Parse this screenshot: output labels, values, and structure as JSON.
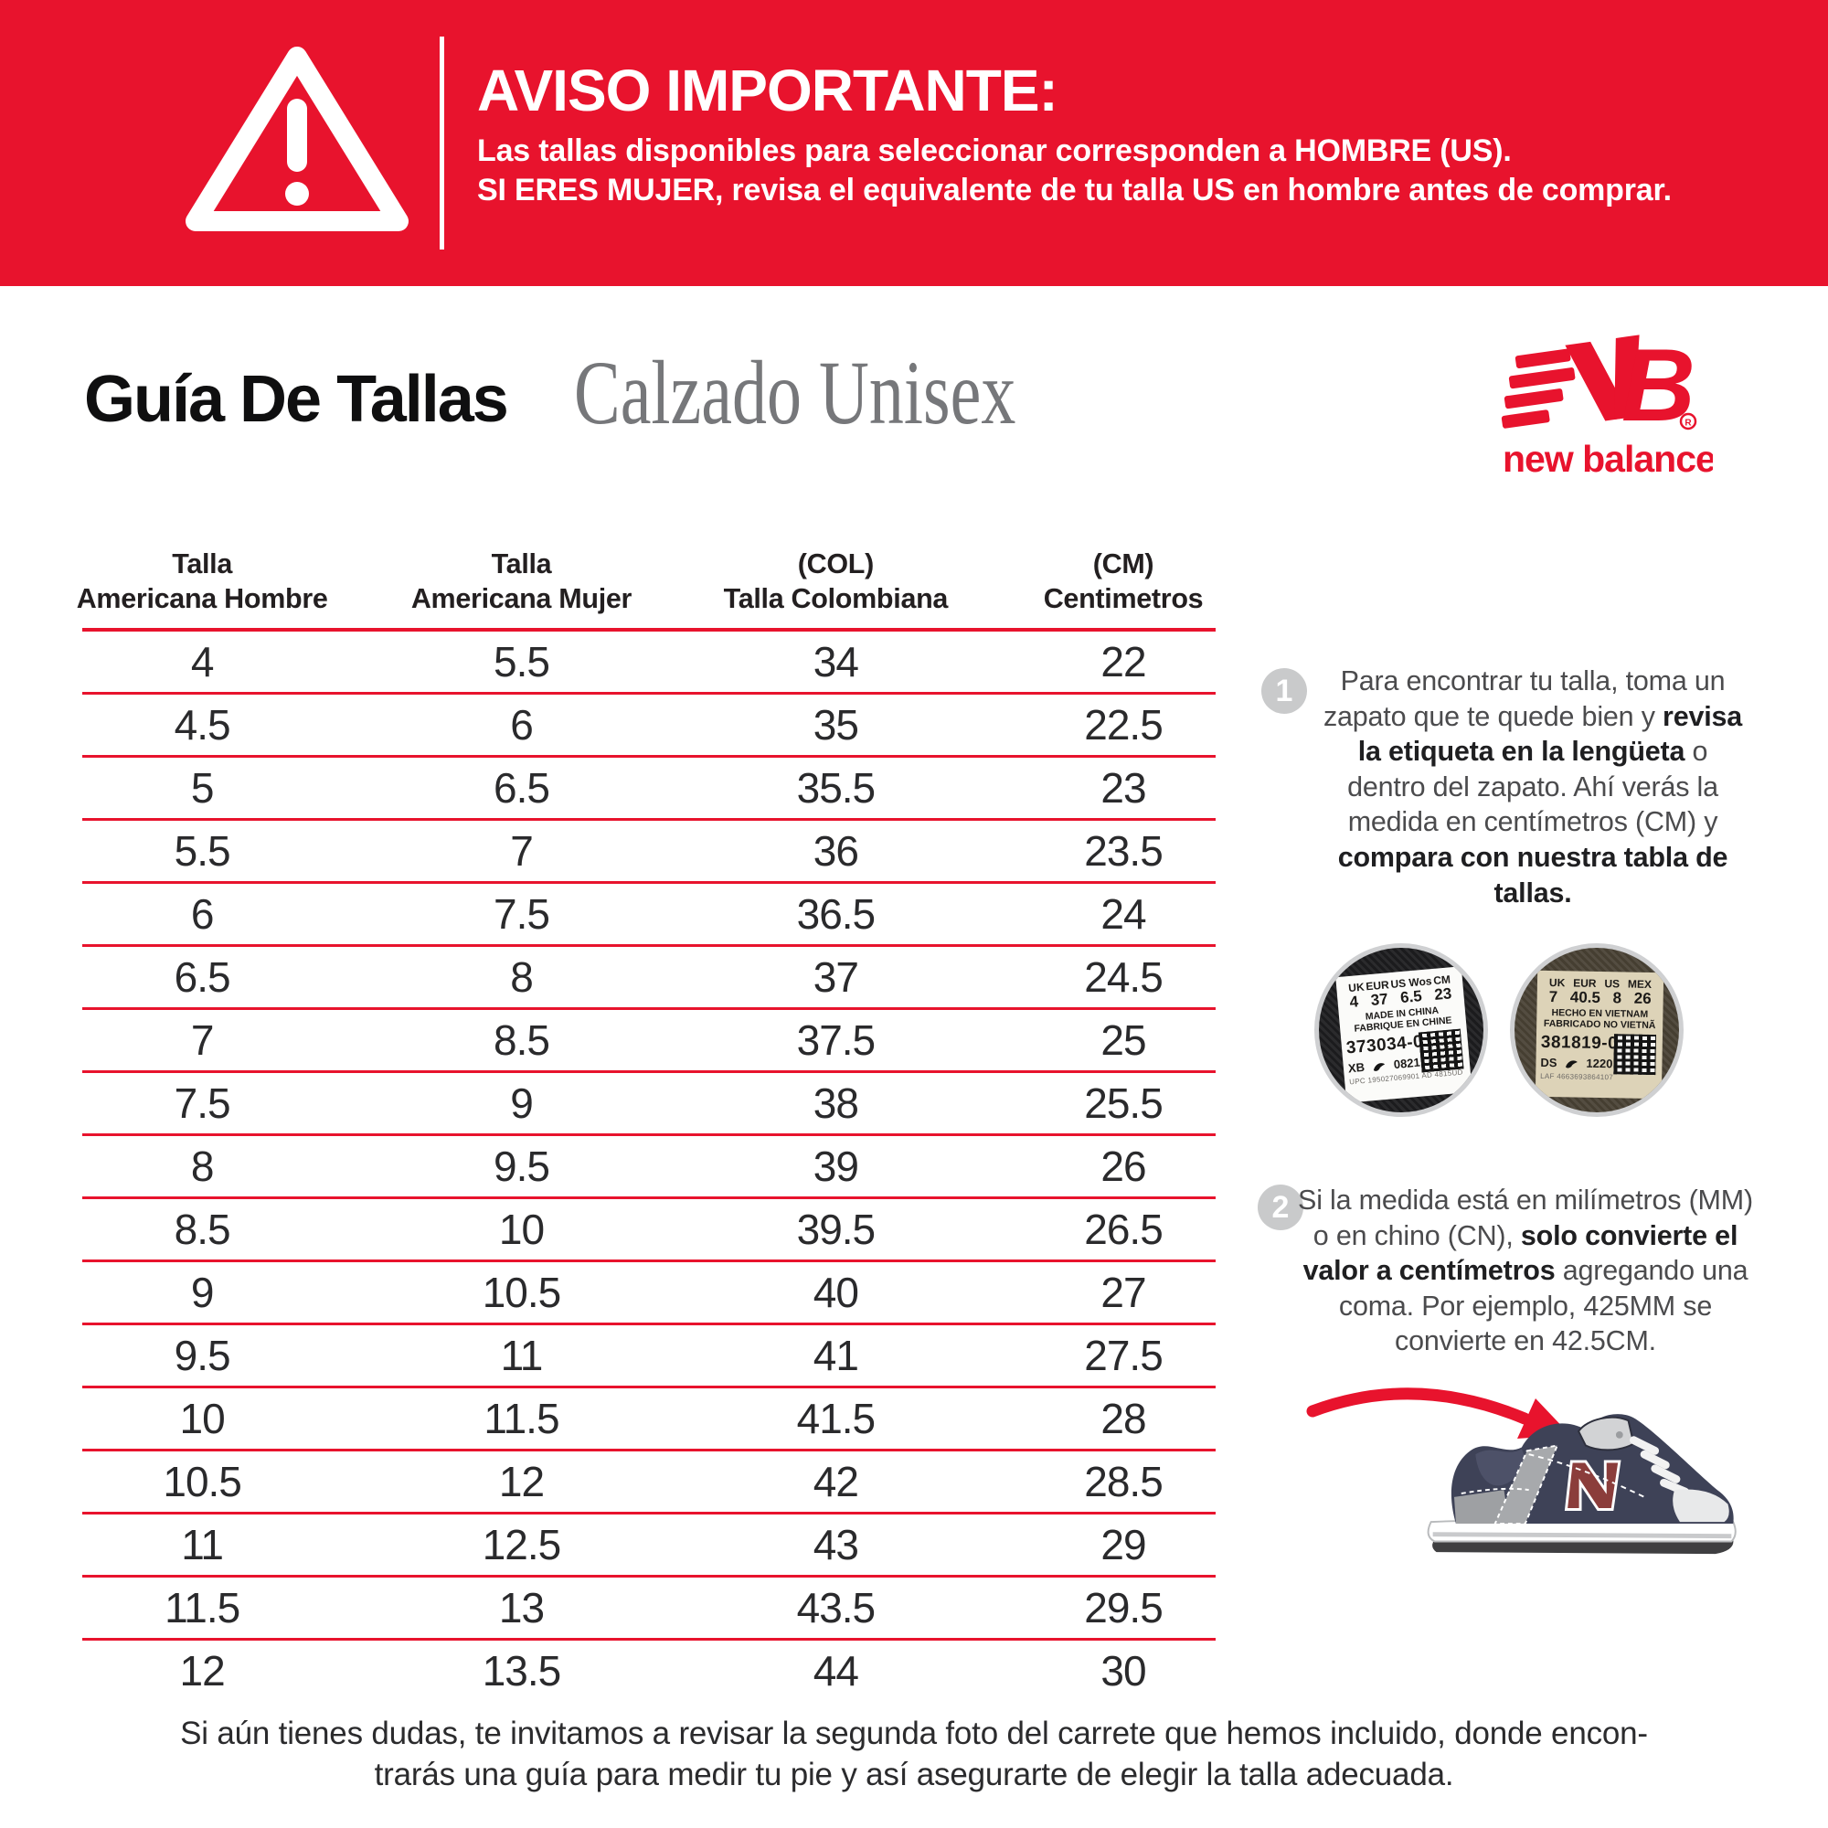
{
  "colors": {
    "brand_red": "#e8132d",
    "ink": "#231f20",
    "step_text_gray": "#4b4b4d",
    "badge_gray": "#c9cacb",
    "subtitle_gray": "#76777a",
    "shoe_navy": "#3e4257",
    "shoe_n_maroon": "#8b3d3b"
  },
  "banner": {
    "title": "AVISO IMPORTANTE:",
    "lines": [
      [
        {
          "t": "Las tallas disponibles para seleccionar corresponden a ",
          "b": false
        },
        {
          "t": "HOMBRE (US).",
          "b": true
        }
      ],
      [
        {
          "t": "SI ERES MUJER,",
          "b": true
        },
        {
          "t": " revisa el equivalente de tu talla US en hombre antes de comprar.",
          "b": false
        }
      ]
    ]
  },
  "header": {
    "title": "Guía De Tallas",
    "subtitle": "Calzado Unisex",
    "brand_mark": "B",
    "brand_wordmark": "new balance",
    "registered": "R"
  },
  "table": {
    "columns": [
      {
        "l1": "Talla",
        "l2": "Americana Hombre"
      },
      {
        "l1": "Talla",
        "l2": "Americana Mujer"
      },
      {
        "l1": "(COL)",
        "l2": "Talla Colombiana"
      },
      {
        "l1": "(CM)",
        "l2": "Centimetros"
      }
    ],
    "rows": [
      [
        "4",
        "5.5",
        "34",
        "22"
      ],
      [
        "4.5",
        "6",
        "35",
        "22.5"
      ],
      [
        "5",
        "6.5",
        "35.5",
        "23"
      ],
      [
        "5.5",
        "7",
        "36",
        "23.5"
      ],
      [
        "6",
        "7.5",
        "36.5",
        "24"
      ],
      [
        "6.5",
        "8",
        "37",
        "24.5"
      ],
      [
        "7",
        "8.5",
        "37.5",
        "25"
      ],
      [
        "7.5",
        "9",
        "38",
        "25.5"
      ],
      [
        "8",
        "9.5",
        "39",
        "26"
      ],
      [
        "8.5",
        "10",
        "39.5",
        "26.5"
      ],
      [
        "9",
        "10.5",
        "40",
        "27"
      ],
      [
        "9.5",
        "11",
        "41",
        "27.5"
      ],
      [
        "10",
        "11.5",
        "41.5",
        "28"
      ],
      [
        "10.5",
        "12",
        "42",
        "28.5"
      ],
      [
        "11",
        "12.5",
        "43",
        "29"
      ],
      [
        "11.5",
        "13",
        "43.5",
        "29.5"
      ],
      [
        "12",
        "13.5",
        "44",
        "30"
      ]
    ]
  },
  "steps": [
    {
      "number": "1",
      "segments": [
        {
          "t": "Para encontrar tu talla, toma un\nzapato que te quede bien y ",
          "b": false
        },
        {
          "t": "revisa\nla etiqueta en la lengüeta",
          "b": true
        },
        {
          "t": " o\ndentro del zapato. Ahí verás la\nmedida en centímetros (CM) y\n",
          "b": false
        },
        {
          "t": "compara con nuestra tabla de\ntallas.",
          "b": true
        }
      ]
    },
    {
      "number": "2",
      "segments": [
        {
          "t": "Si la medida está en milímetros (MM)\no en chino (CN), ",
          "b": false
        },
        {
          "t": "solo convierte el\nvalor a centímetros",
          "b": true
        },
        {
          "t": " agregando una\ncoma. Por ejemplo, 425MM se\nconvierte en 42.5CM.",
          "b": false
        }
      ]
    }
  ],
  "labels": {
    "left": {
      "cols": [
        "UK",
        "EUR",
        "US Wos",
        "CM"
      ],
      "vals": [
        "4",
        "37",
        "6.5",
        "23"
      ],
      "origin1": "MADE IN CHINA",
      "origin2": "FABRIQUE EN CHINE",
      "style": "373034-01",
      "factory": "XB",
      "date": "0821",
      "micro": "UPC 195027069901  AD 4815UD"
    },
    "right": {
      "cols": [
        "UK",
        "EUR",
        "US",
        "MEX"
      ],
      "vals": [
        "7",
        "40.5",
        "8",
        "26"
      ],
      "origin1": "HECHO EN VIETNAM",
      "origin2": "FABRICADO NO VIETNÃ",
      "style": "381819-01",
      "factory": "DS",
      "date": "1220",
      "micro": "LAF 4663693864107"
    }
  },
  "footer": {
    "line1": "Si aún tienes dudas, te invitamos a revisar la segunda foto del carrete que hemos incluido, donde encon-",
    "line2": "trarás una guía para medir tu pie y así asegurarte de elegir la talla adecuada."
  }
}
